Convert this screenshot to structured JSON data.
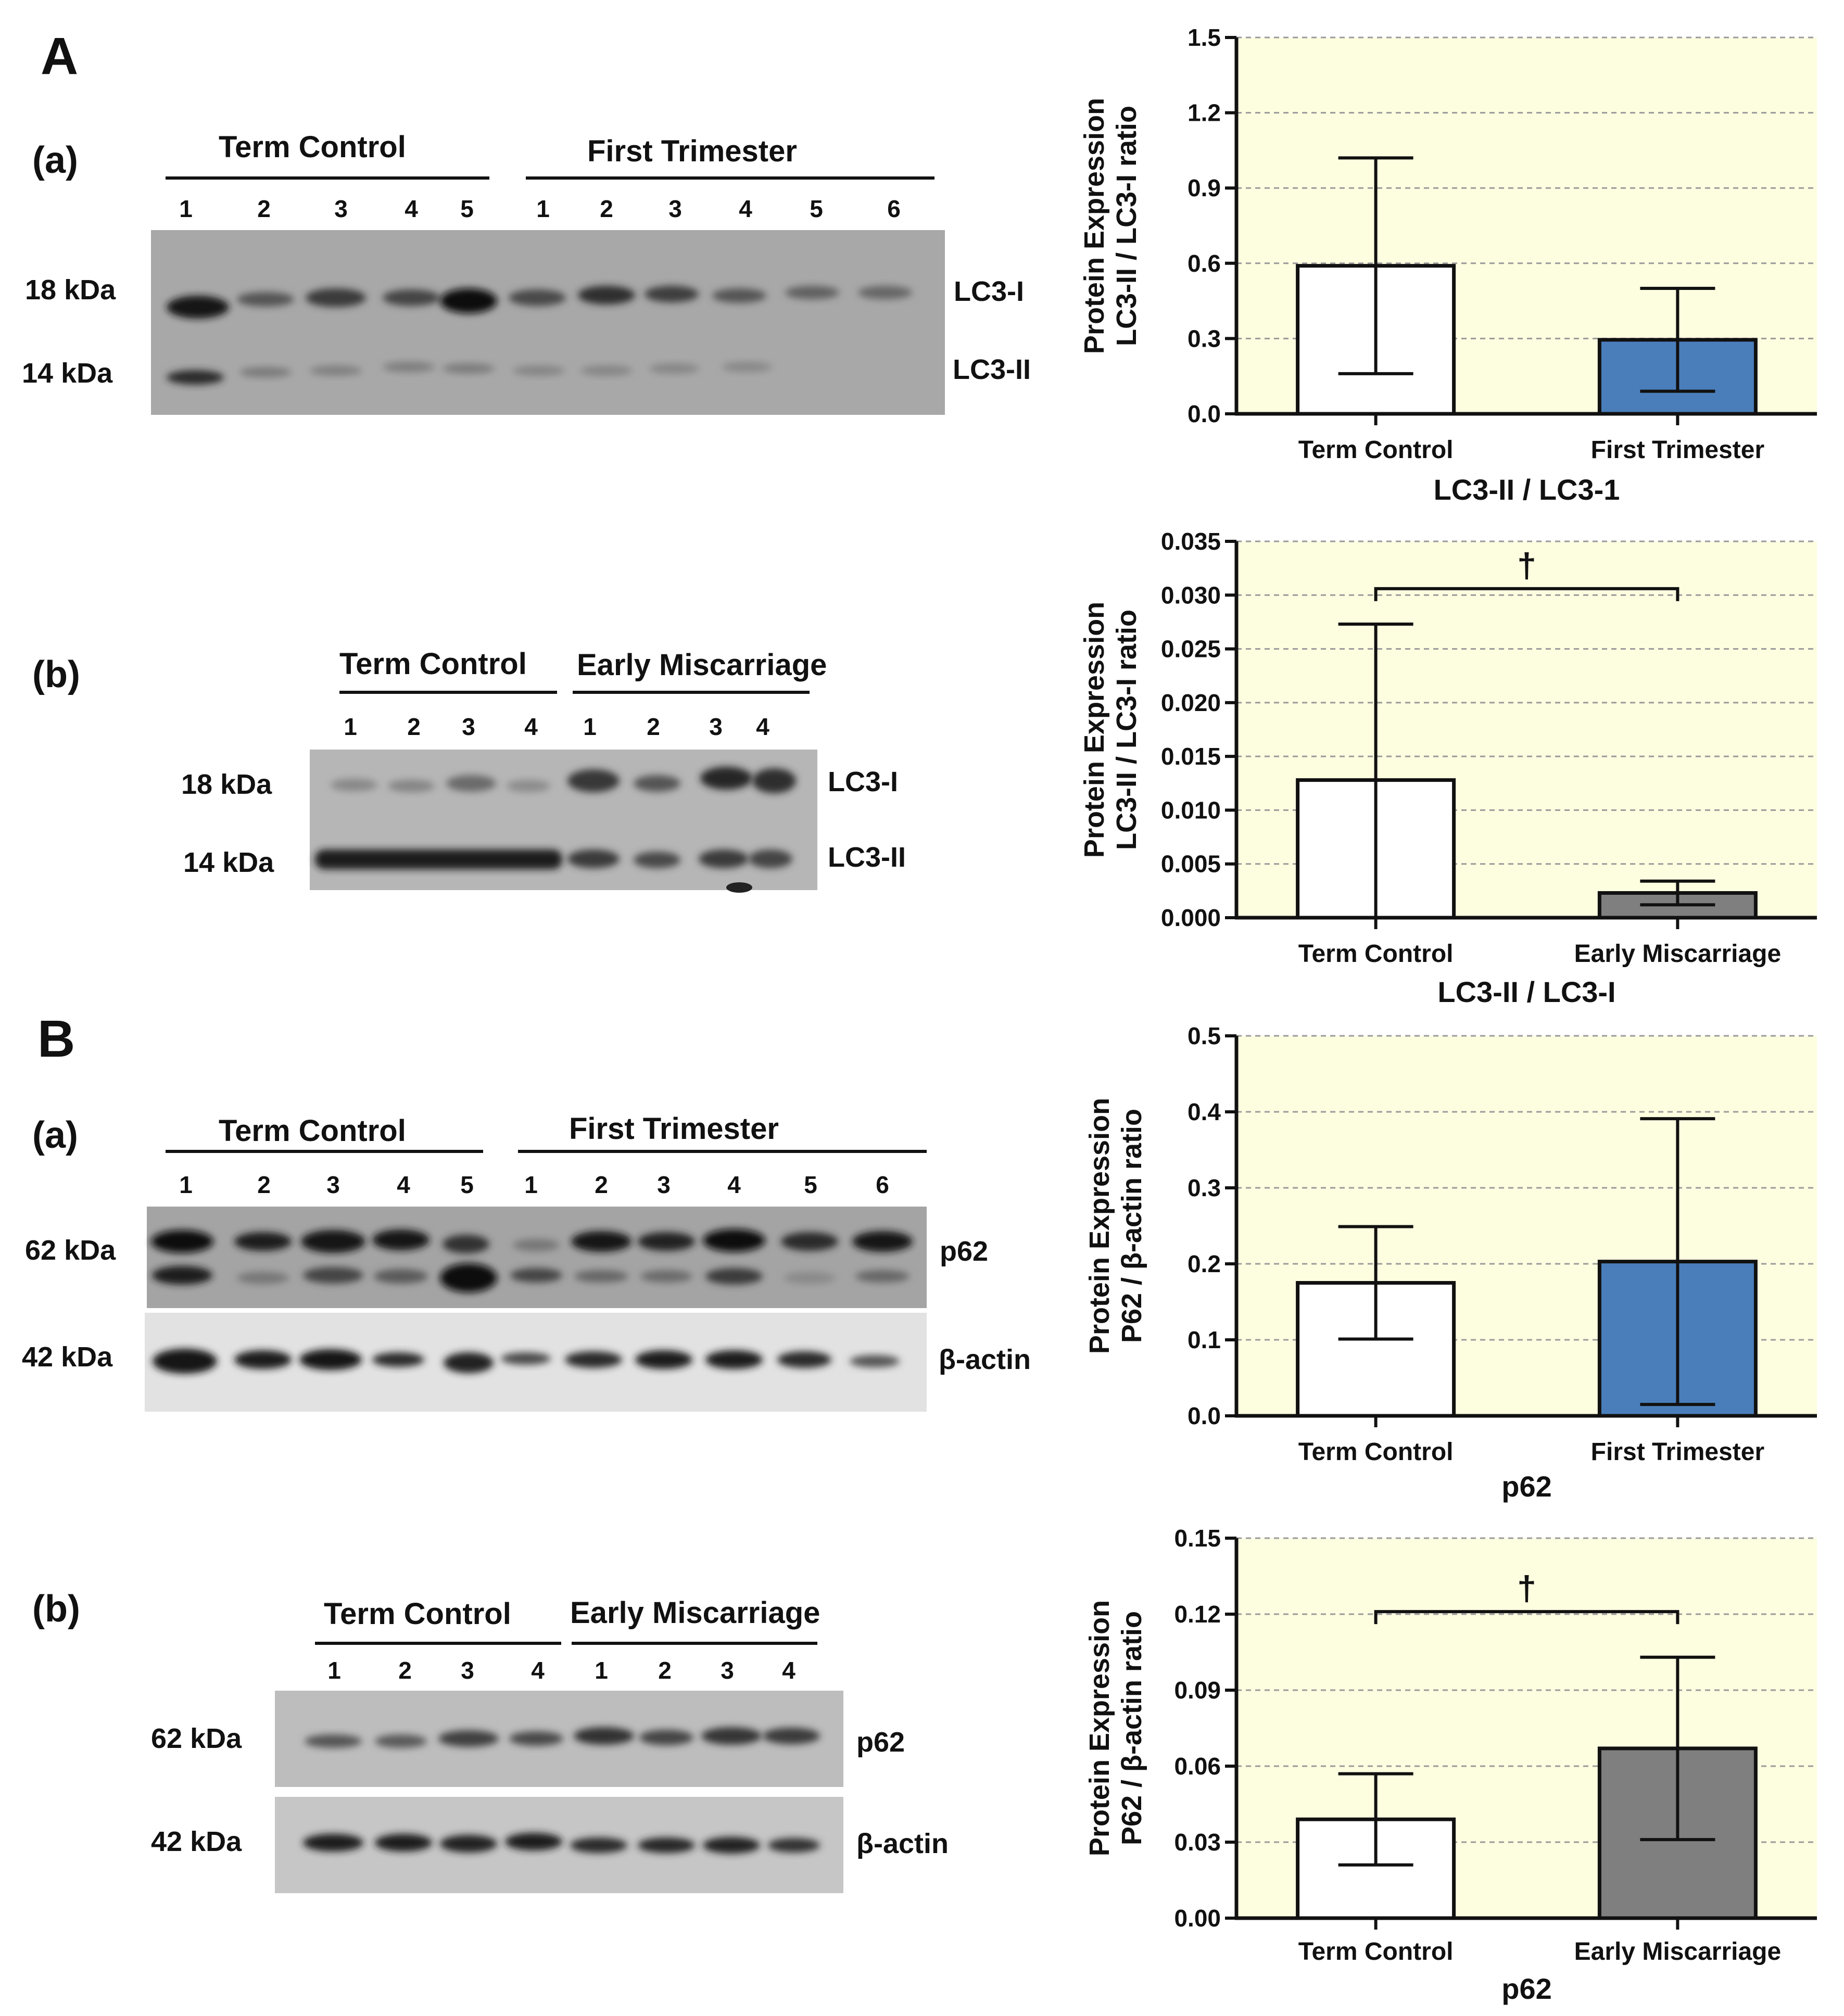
{
  "panels": {
    "A": {
      "label": "A",
      "a": {
        "label": "(a)",
        "groups": [
          "Term Control",
          "First Trimester"
        ],
        "lanes_g1": [
          "1",
          "2",
          "3",
          "4",
          "5"
        ],
        "lanes_g2": [
          "1",
          "2",
          "3",
          "4",
          "5",
          "6"
        ],
        "mw": [
          "18 kDa",
          "14 kDa"
        ],
        "bands": [
          "LC3-I",
          "LC3-II"
        ]
      },
      "b": {
        "label": "(b)",
        "groups": [
          "Term Control",
          "Early Miscarriage"
        ],
        "lanes_g1": [
          "1",
          "2",
          "3",
          "4"
        ],
        "lanes_g2": [
          "1",
          "2",
          "3",
          "4"
        ],
        "mw": [
          "18 kDa",
          "14 kDa"
        ],
        "bands": [
          "LC3-I",
          "LC3-II"
        ]
      }
    },
    "B": {
      "label": "B",
      "a": {
        "label": "(a)",
        "groups": [
          "Term Control",
          "First Trimester"
        ],
        "lanes_g1": [
          "1",
          "2",
          "3",
          "4",
          "5"
        ],
        "lanes_g2": [
          "1",
          "2",
          "3",
          "4",
          "5",
          "6"
        ],
        "mw": [
          "62 kDa",
          "42 kDa"
        ],
        "bands": [
          "p62",
          "β-actin"
        ]
      },
      "b": {
        "label": "(b)",
        "groups": [
          "Term Control",
          "Early Miscarriage"
        ],
        "lanes_g1": [
          "1",
          "2",
          "3",
          "4"
        ],
        "lanes_g2": [
          "1",
          "2",
          "3",
          "4"
        ],
        "mw": [
          "62 kDa",
          "42 kDa"
        ],
        "bands": [
          "p62",
          "β-actin"
        ]
      }
    }
  },
  "colors": {
    "plot_bg": "#fdfde0",
    "bar_white": "#ffffff",
    "bar_blue": "#4a7ebb",
    "bar_gray": "#7f7f7f",
    "grid": "#9a9a9a"
  },
  "chart_data": [
    {
      "type": "bar",
      "ylabel_line1": "Protein Expression",
      "ylabel_line2": "LC3-II / LC3-I  ratio",
      "xlabel": "LC3-II / LC3-1",
      "categories": [
        "Term Control",
        "First Trimester"
      ],
      "values": [
        0.59,
        0.295
      ],
      "errors": [
        0.43,
        0.205
      ],
      "ylim": [
        0,
        1.5
      ],
      "ticks": [
        "0.0",
        "0.3",
        "0.6",
        "0.9",
        "1.2",
        "1.5"
      ],
      "tick_values": [
        0,
        0.3,
        0.6,
        0.9,
        1.2,
        1.5
      ],
      "bar_colors": [
        "bar_white",
        "bar_blue"
      ],
      "significance": ""
    },
    {
      "type": "bar",
      "ylabel_line1": "Protein Expression",
      "ylabel_line2": "LC3-II / LC3-I  ratio",
      "xlabel": "LC3-II / LC3-I",
      "categories": [
        "Term Control",
        "Early Miscarriage"
      ],
      "values": [
        0.0128,
        0.0023
      ],
      "errors": [
        0.0145,
        0.0011
      ],
      "ylim": [
        0,
        0.035
      ],
      "ticks": [
        "0.000",
        "0.005",
        "0.010",
        "0.015",
        "0.020",
        "0.025",
        "0.030",
        "0.035"
      ],
      "tick_values": [
        0,
        0.005,
        0.01,
        0.015,
        0.02,
        0.025,
        0.03,
        0.035
      ],
      "bar_colors": [
        "bar_white",
        "bar_gray"
      ],
      "significance": "†",
      "bracket_y": 0.0306
    },
    {
      "type": "bar",
      "ylabel_line1": "Protein Expression",
      "ylabel_line2": "P62 / β-actin ratio",
      "xlabel": "p62",
      "categories": [
        "Term Control",
        "First Trimester"
      ],
      "values": [
        0.175,
        0.203
      ],
      "errors": [
        0.074,
        0.188
      ],
      "ylim": [
        0,
        0.5
      ],
      "ticks": [
        "0.0",
        "0.1",
        "0.2",
        "0.3",
        "0.4",
        "0.5"
      ],
      "tick_values": [
        0,
        0.1,
        0.2,
        0.3,
        0.4,
        0.5
      ],
      "bar_colors": [
        "bar_white",
        "bar_blue"
      ],
      "significance": ""
    },
    {
      "type": "bar",
      "ylabel_line1": "Protein Expression",
      "ylabel_line2": "P62 / β-actin ratio",
      "xlabel": "p62",
      "categories": [
        "Term Control",
        "Early Miscarriage"
      ],
      "values": [
        0.039,
        0.067
      ],
      "errors": [
        0.018,
        0.036
      ],
      "ylim": [
        0,
        0.15
      ],
      "ticks": [
        "0.00",
        "0.03",
        "0.06",
        "0.09",
        "0.12",
        "0.15"
      ],
      "tick_values": [
        0,
        0.03,
        0.06,
        0.09,
        0.12,
        0.15
      ],
      "bar_colors": [
        "bar_white",
        "bar_gray"
      ],
      "significance": "†",
      "bracket_y": 0.121
    }
  ]
}
